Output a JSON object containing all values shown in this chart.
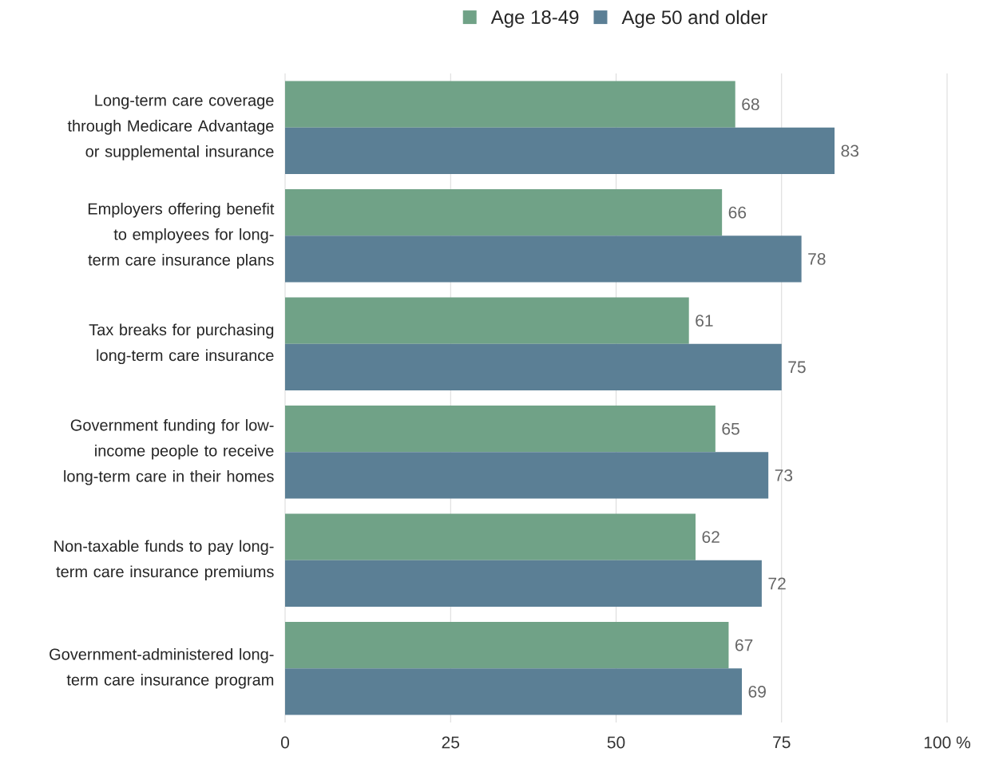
{
  "chart_data": {
    "type": "bar",
    "orientation": "horizontal",
    "categories": [
      "Long-term care coverage through Medicare Advantage or supplemental insurance",
      "Employers offering benefit to employees for long-term care insurance plans",
      "Tax breaks for purchasing long-term care insurance",
      "Government funding for low-income people to receive long-term care in their homes",
      "Non-taxable funds to pay long-term care insurance premiums",
      "Government-administered long-term care insurance program"
    ],
    "series": [
      {
        "name": "Age 18-49",
        "color": "#70a287",
        "values": [
          68,
          66,
          61,
          65,
          62,
          67
        ]
      },
      {
        "name": "Age 50 and older",
        "color": "#5b7f95",
        "values": [
          83,
          78,
          75,
          73,
          72,
          69
        ]
      }
    ],
    "xlim": [
      0,
      100
    ],
    "xticks": [
      0,
      25,
      50,
      75,
      {
        "value": 100,
        "label": "100 %"
      }
    ],
    "grid": "x",
    "legend": "top",
    "data_labels": true
  }
}
